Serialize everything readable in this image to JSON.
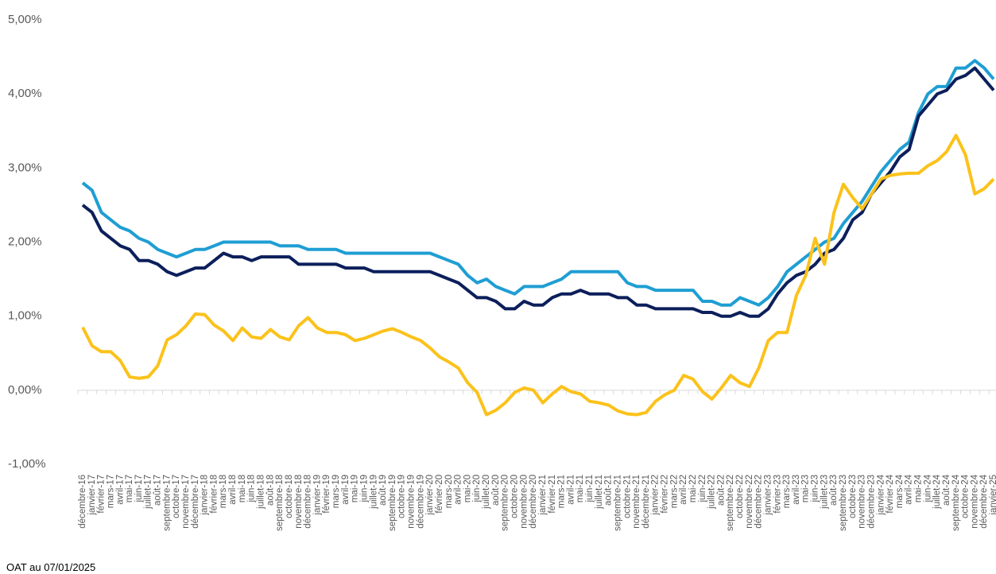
{
  "chart_data": {
    "type": "line",
    "categories": [
      "décembre-16",
      "janvier-17",
      "février-17",
      "mars-17",
      "avril-17",
      "mai-17",
      "juin-17",
      "juillet-17",
      "août-17",
      "septembre-17",
      "octobre-17",
      "novembre-17",
      "décembre-17",
      "janvier-18",
      "février-18",
      "mars-18",
      "avril-18",
      "mai-18",
      "juin-18",
      "juillet-18",
      "août-18",
      "septembre-18",
      "octobre-18",
      "novembre-18",
      "décembre-18",
      "janvier-19",
      "février-19",
      "mars-19",
      "avril-19",
      "mai-19",
      "juin-19",
      "juillet-19",
      "août-19",
      "septembre-19",
      "octobre-19",
      "novembre-19",
      "décembre-19",
      "janvier-20",
      "février-20",
      "mars-20",
      "avril-20",
      "mai-20",
      "juin-20",
      "juillet-20",
      "août-20",
      "septembre-20",
      "octobre-20",
      "novembre-20",
      "décembre-20",
      "janvier-21",
      "février-21",
      "mars-21",
      "avril-21",
      "mai-21",
      "juin-21",
      "juillet-21",
      "août-21",
      "septembre-21",
      "octobre-21",
      "novembre-21",
      "décembre-21",
      "janvier-22",
      "février-22",
      "mars-22",
      "avril-22",
      "mai-22",
      "juin-22",
      "juillet-22",
      "août-22",
      "septembre-22",
      "octobre-22",
      "novembre-22",
      "décembre-22",
      "janvier-23",
      "février-23",
      "mars-23",
      "avril-23",
      "mai-23",
      "juin-23",
      "juillet-23",
      "août-23",
      "septembre-23",
      "octobre-23",
      "novembre-23",
      "décembre-23",
      "janvier-24",
      "février-24",
      "mars-24",
      "avril-24",
      "mai-24",
      "juin-24",
      "juillet-24",
      "août-24",
      "septembre-24",
      "octobre-24",
      "novembre-24",
      "décembre-24",
      "janvier-25"
    ],
    "series": [
      {
        "color": "#1f9ed3",
        "values": [
          2.8,
          2.7,
          2.4,
          2.3,
          2.2,
          2.15,
          2.05,
          2.0,
          1.9,
          1.85,
          1.8,
          1.85,
          1.9,
          1.9,
          1.95,
          2.0,
          2.0,
          2.0,
          2.0,
          2.0,
          2.0,
          1.95,
          1.95,
          1.95,
          1.9,
          1.9,
          1.9,
          1.9,
          1.85,
          1.85,
          1.85,
          1.85,
          1.85,
          1.85,
          1.85,
          1.85,
          1.85,
          1.85,
          1.8,
          1.75,
          1.7,
          1.55,
          1.45,
          1.5,
          1.4,
          1.35,
          1.3,
          1.4,
          1.4,
          1.4,
          1.45,
          1.5,
          1.6,
          1.6,
          1.6,
          1.6,
          1.6,
          1.6,
          1.45,
          1.4,
          1.4,
          1.35,
          1.35,
          1.35,
          1.35,
          1.35,
          1.2,
          1.2,
          1.15,
          1.15,
          1.25,
          1.2,
          1.15,
          1.25,
          1.4,
          1.6,
          1.7,
          1.8,
          1.9,
          2.0,
          2.05,
          2.25,
          2.4,
          2.55,
          2.75,
          2.95,
          3.1,
          3.25,
          3.35,
          3.75,
          4.0,
          4.1,
          4.1,
          4.35,
          4.35,
          4.45,
          4.35,
          4.2
        ]
      },
      {
        "color": "#0c1f5b",
        "values": [
          2.5,
          2.4,
          2.15,
          2.05,
          1.95,
          1.9,
          1.75,
          1.75,
          1.7,
          1.6,
          1.55,
          1.6,
          1.65,
          1.65,
          1.75,
          1.85,
          1.8,
          1.8,
          1.75,
          1.8,
          1.8,
          1.8,
          1.8,
          1.7,
          1.7,
          1.7,
          1.7,
          1.7,
          1.65,
          1.65,
          1.65,
          1.6,
          1.6,
          1.6,
          1.6,
          1.6,
          1.6,
          1.6,
          1.55,
          1.5,
          1.45,
          1.35,
          1.25,
          1.25,
          1.2,
          1.1,
          1.1,
          1.2,
          1.15,
          1.15,
          1.25,
          1.3,
          1.3,
          1.35,
          1.3,
          1.3,
          1.3,
          1.25,
          1.25,
          1.15,
          1.15,
          1.1,
          1.1,
          1.1,
          1.1,
          1.1,
          1.05,
          1.05,
          1.0,
          1.0,
          1.05,
          1.0,
          1.0,
          1.1,
          1.3,
          1.45,
          1.55,
          1.6,
          1.7,
          1.85,
          1.9,
          2.05,
          2.3,
          2.4,
          2.65,
          2.8,
          2.95,
          3.15,
          3.25,
          3.7,
          3.85,
          4.0,
          4.05,
          4.2,
          4.25,
          4.35,
          4.2,
          4.05
        ]
      },
      {
        "color": "#fbc21b",
        "values": [
          0.85,
          0.6,
          0.52,
          0.52,
          0.4,
          0.18,
          0.16,
          0.18,
          0.33,
          0.68,
          0.75,
          0.87,
          1.03,
          1.02,
          0.88,
          0.8,
          0.67,
          0.84,
          0.72,
          0.7,
          0.82,
          0.72,
          0.68,
          0.87,
          0.98,
          0.84,
          0.78,
          0.78,
          0.75,
          0.67,
          0.7,
          0.75,
          0.8,
          0.83,
          0.78,
          0.72,
          0.67,
          0.57,
          0.45,
          0.38,
          0.3,
          0.1,
          -0.03,
          -0.33,
          -0.27,
          -0.17,
          -0.03,
          0.03,
          0.0,
          -0.17,
          -0.05,
          0.05,
          -0.02,
          -0.05,
          -0.15,
          -0.17,
          -0.2,
          -0.28,
          -0.32,
          -0.33,
          -0.3,
          -0.15,
          -0.06,
          0.0,
          0.2,
          0.15,
          -0.02,
          -0.12,
          0.03,
          0.2,
          0.1,
          0.05,
          0.3,
          0.67,
          0.78,
          0.78,
          1.28,
          1.55,
          2.05,
          1.7,
          2.4,
          2.78,
          2.6,
          2.45,
          2.65,
          2.85,
          2.9,
          2.92,
          2.93,
          2.93,
          3.03,
          3.1,
          3.22,
          3.44,
          3.18,
          2.65,
          2.72,
          2.85
        ]
      }
    ],
    "ylim": [
      -1,
      5
    ],
    "yticks": [
      {
        "value": -1,
        "label": "-1,00%"
      },
      {
        "value": 0,
        "label": "0,00%"
      },
      {
        "value": 1,
        "label": "1,00%"
      },
      {
        "value": 2,
        "label": "2,00%"
      },
      {
        "value": 3,
        "label": "3,00%"
      },
      {
        "value": 4,
        "label": "4,00%"
      },
      {
        "value": 5,
        "label": "5,00%"
      }
    ],
    "grid": false,
    "footnote": "OAT au 07/01/2025"
  }
}
